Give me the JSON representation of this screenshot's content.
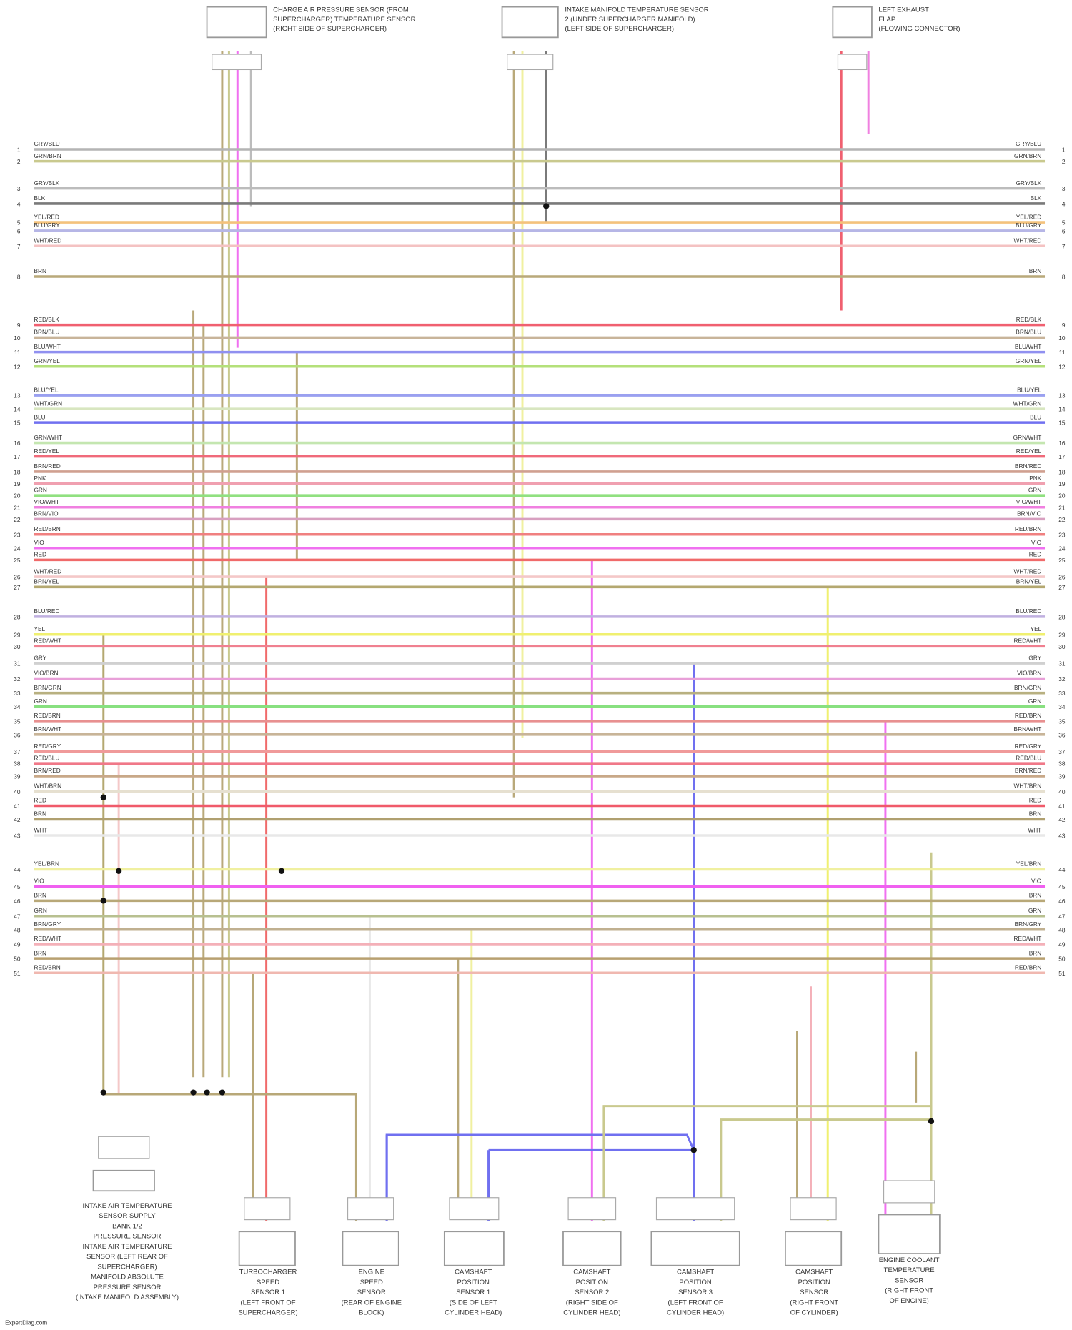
{
  "diagram": {
    "wires": [
      {
        "pin": "1",
        "label": "GRY/BLU",
        "color": "#b4b4b4"
      },
      {
        "pin": "2",
        "label": "GRN/BRN",
        "color": "#c9c98e"
      },
      {
        "pin": "3",
        "label": "GRY/BLK",
        "color": "#bcbcbc"
      },
      {
        "pin": "4",
        "label": "BLK",
        "color": "#7a7a7a"
      },
      {
        "pin": "5",
        "label": "YEL/RED",
        "color": "#f4c27c"
      },
      {
        "pin": "6",
        "label": "BLU/GRY",
        "color": "#b6b6e6"
      },
      {
        "pin": "7",
        "label": "WHT/RED",
        "color": "#f4c2c2"
      },
      {
        "pin": "8",
        "label": "BRN",
        "color": "#b9a97a"
      },
      {
        "pin": "9",
        "label": "RED/BLK",
        "color": "#f06070"
      },
      {
        "pin": "10",
        "label": "BRN/BLU",
        "color": "#c8b49a"
      },
      {
        "pin": "11",
        "label": "BLU/WHT",
        "color": "#9090f0"
      },
      {
        "pin": "12",
        "label": "GRN/YEL",
        "color": "#b4e07a"
      },
      {
        "pin": "13",
        "label": "BLU/YEL",
        "color": "#9aa0f0"
      },
      {
        "pin": "14",
        "label": "WHT/GRN",
        "color": "#d8e6c0"
      },
      {
        "pin": "15",
        "label": "BLU",
        "color": "#7070f0"
      },
      {
        "pin": "16",
        "label": "GRN/WHT",
        "color": "#c4e6b0"
      },
      {
        "pin": "17",
        "label": "RED/YEL",
        "color": "#f06a7a"
      },
      {
        "pin": "18",
        "label": "BRN/RED",
        "color": "#d0a090"
      },
      {
        "pin": "19",
        "label": "PNK",
        "color": "#f0a0b0"
      },
      {
        "pin": "20",
        "label": "GRN",
        "color": "#90e080"
      },
      {
        "pin": "21",
        "label": "VIO/WHT",
        "color": "#f080e0"
      },
      {
        "pin": "22",
        "label": "BRN/VIO",
        "color": "#d8a0c0"
      },
      {
        "pin": "23",
        "label": "RED/BRN",
        "color": "#f08080"
      },
      {
        "pin": "24",
        "label": "VIO",
        "color": "#f070f0"
      },
      {
        "pin": "25",
        "label": "RED",
        "color": "#f06a6a"
      },
      {
        "pin": "26",
        "label": "WHT/RED",
        "color": "#f4c8c8"
      },
      {
        "pin": "27",
        "label": "BRN/YEL",
        "color": "#b4a870"
      },
      {
        "pin": "28",
        "label": "BLU/RED",
        "color": "#c0b0e0"
      },
      {
        "pin": "29",
        "label": "YEL",
        "color": "#f0f070"
      },
      {
        "pin": "30",
        "label": "RED/WHT",
        "color": "#f08090"
      },
      {
        "pin": "31",
        "label": "GRY",
        "color": "#d0d0d0"
      },
      {
        "pin": "32",
        "label": "VIO/BRN",
        "color": "#e8a0d8"
      },
      {
        "pin": "33",
        "label": "BRN/GRN",
        "color": "#b8b080"
      },
      {
        "pin": "34",
        "label": "GRN",
        "color": "#88e080"
      },
      {
        "pin": "35",
        "label": "RED/BRN",
        "color": "#e89090"
      },
      {
        "pin": "36",
        "label": "BRN/WHT",
        "color": "#c8b498"
      },
      {
        "pin": "37",
        "label": "RED/GRY",
        "color": "#f09a9a"
      },
      {
        "pin": "38",
        "label": "RED/BLU",
        "color": "#f07888"
      },
      {
        "pin": "39",
        "label": "BRN/RED",
        "color": "#c8a888"
      },
      {
        "pin": "40",
        "label": "WHT/BRN",
        "color": "#e6e0d0"
      },
      {
        "pin": "41",
        "label": "RED",
        "color": "#f05a6a"
      },
      {
        "pin": "42",
        "label": "BRN",
        "color": "#b0a070"
      },
      {
        "pin": "43",
        "label": "WHT",
        "color": "#e8e8e8"
      },
      {
        "pin": "44",
        "label": "YEL/BRN",
        "color": "#f0f0a0"
      },
      {
        "pin": "45",
        "label": "VIO",
        "color": "#f060f0"
      },
      {
        "pin": "46",
        "label": "BRN",
        "color": "#b8a878"
      },
      {
        "pin": "47",
        "label": "GRN",
        "color": "#b8c090"
      },
      {
        "pin": "48",
        "label": "BRN/GRY",
        "color": "#c0b090"
      },
      {
        "pin": "49",
        "label": "RED/WHT",
        "color": "#f4b0b8"
      },
      {
        "pin": "50",
        "label": "BRN",
        "color": "#b8a070"
      },
      {
        "pin": "51",
        "label": "RED/BRN",
        "color": "#f0b8b0"
      }
    ],
    "top_components": [
      {
        "lines": [
          "CHARGE AIR PRESSURE SENSOR (FROM",
          "SUPERCHARGER) TEMPERATURE SENSOR",
          "(RIGHT SIDE OF SUPERCHARGER)"
        ]
      },
      {
        "lines": [
          "INTAKE MANIFOLD TEMPERATURE SENSOR",
          "2 (UNDER SUPERCHARGER MANIFOLD)",
          "(LEFT SIDE OF SUPERCHARGER)"
        ]
      },
      {
        "lines": [
          "LEFT EXHAUST",
          "FLAP",
          "(FLOWING CONNECTOR)"
        ]
      }
    ],
    "bottom_components": [
      {
        "lines": [
          "INTAKE AIR TEMPERATURE",
          "SENSOR SUPPLY",
          "BANK 1/2",
          "PRESSURE SENSOR",
          "INTAKE AIR TEMPERATURE",
          "SENSOR (LEFT REAR OF",
          "SUPERCHARGER)",
          "MANIFOLD ABSOLUTE",
          "PRESSURE SENSOR",
          "(INTAKE MANIFOLD ASSEMBLY)"
        ]
      },
      {
        "lines": [
          "TURBOCHARGER",
          "SPEED",
          "SENSOR 1",
          "(LEFT FRONT OF",
          "SUPERCHARGER)"
        ]
      },
      {
        "lines": [
          "ENGINE",
          "SPEED",
          "SENSOR",
          "(REAR OF ENGINE",
          "BLOCK)"
        ]
      },
      {
        "lines": [
          "CAMSHAFT",
          "POSITION",
          "SENSOR 1",
          "(SIDE OF LEFT",
          "CYLINDER HEAD)"
        ]
      },
      {
        "lines": [
          "CAMSHAFT",
          "POSITION",
          "SENSOR 2",
          "(RIGHT SIDE OF",
          "CYLINDER HEAD)"
        ]
      },
      {
        "lines": [
          "CAMSHAFT",
          "POSITION",
          "SENSOR 3",
          "(LEFT FRONT OF",
          "CYLINDER HEAD)"
        ]
      },
      {
        "lines": [
          "CAMSHAFT",
          "POSITION",
          "SENSOR",
          "(RIGHT FRONT",
          "OF CYLINDER)"
        ]
      },
      {
        "lines": [
          "ENGINE COOLANT",
          "TEMPERATURE",
          "SENSOR",
          "(RIGHT FRONT",
          "OF ENGINE)"
        ]
      }
    ],
    "footer": "ExpertDiag.com"
  }
}
